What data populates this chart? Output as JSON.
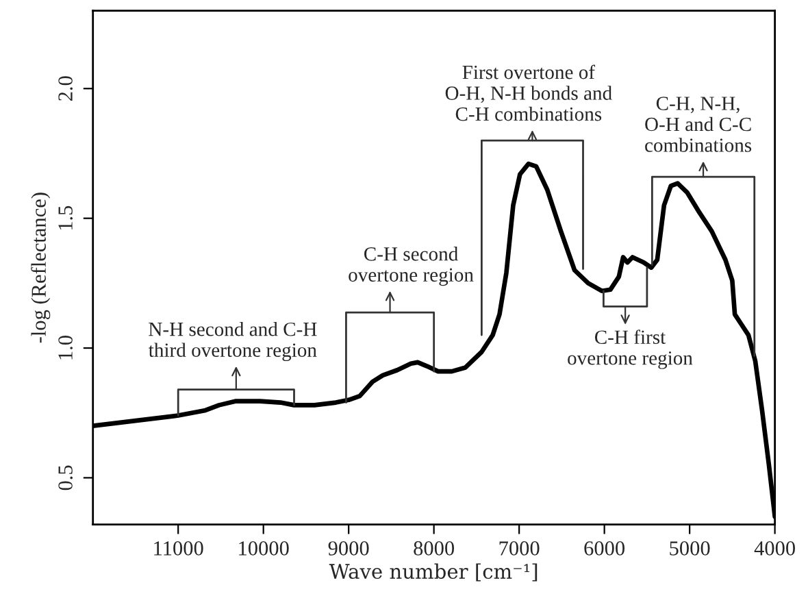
{
  "chart_data": {
    "type": "line",
    "xlabel": "Wave number [cm⁻¹]",
    "ylabel": "-log (Reflectance)",
    "xlim": [
      12000,
      4000
    ],
    "ylim": [
      0.32,
      2.3
    ],
    "xticks": [
      11000,
      10000,
      9000,
      8000,
      7000,
      6000,
      5000,
      4000
    ],
    "yticks": [
      {
        "value": 0.5,
        "label": "0.5"
      },
      {
        "value": 1.0,
        "label": "1.0"
      },
      {
        "value": 1.5,
        "label": "1.5"
      },
      {
        "value": 2.0,
        "label": "2.0"
      }
    ],
    "grid": false,
    "legend": false,
    "marker": "none",
    "line_style": "solid",
    "series": [
      {
        "color": "#000000",
        "x": [
          12000,
          11000,
          10680,
          10520,
          10330,
          10040,
          9800,
          9640,
          9400,
          9150,
          9000,
          8870,
          8720,
          8600,
          8430,
          8270,
          8190,
          8080,
          7950,
          7790,
          7630,
          7440,
          7310,
          7230,
          7150,
          7070,
          6990,
          6890,
          6800,
          6670,
          6510,
          6350,
          6190,
          6030,
          5930,
          5830,
          5780,
          5730,
          5670,
          5540,
          5450,
          5380,
          5300,
          5220,
          5140,
          5030,
          4900,
          4740,
          4580,
          4500,
          4470,
          4390,
          4310,
          4230,
          4150,
          4070,
          4000
        ],
        "values": [
          0.7,
          0.74,
          0.76,
          0.78,
          0.795,
          0.795,
          0.79,
          0.78,
          0.78,
          0.79,
          0.8,
          0.815,
          0.87,
          0.895,
          0.915,
          0.94,
          0.945,
          0.93,
          0.91,
          0.91,
          0.925,
          0.985,
          1.05,
          1.13,
          1.29,
          1.55,
          1.67,
          1.71,
          1.7,
          1.61,
          1.45,
          1.3,
          1.25,
          1.22,
          1.225,
          1.275,
          1.35,
          1.33,
          1.35,
          1.33,
          1.31,
          1.34,
          1.55,
          1.625,
          1.635,
          1.6,
          1.53,
          1.45,
          1.34,
          1.26,
          1.13,
          1.09,
          1.05,
          0.95,
          0.76,
          0.55,
          0.35
        ]
      }
    ],
    "annotations": [
      "N-H second and C-H\nthird overtone region",
      "C-H second\novertone region",
      "First overtone of\nO-H, N-H bonds and\nC-H combinations",
      "C-H first\novertone region",
      "C-H, N-H,\nO-H and C-C\ncombinations"
    ]
  }
}
